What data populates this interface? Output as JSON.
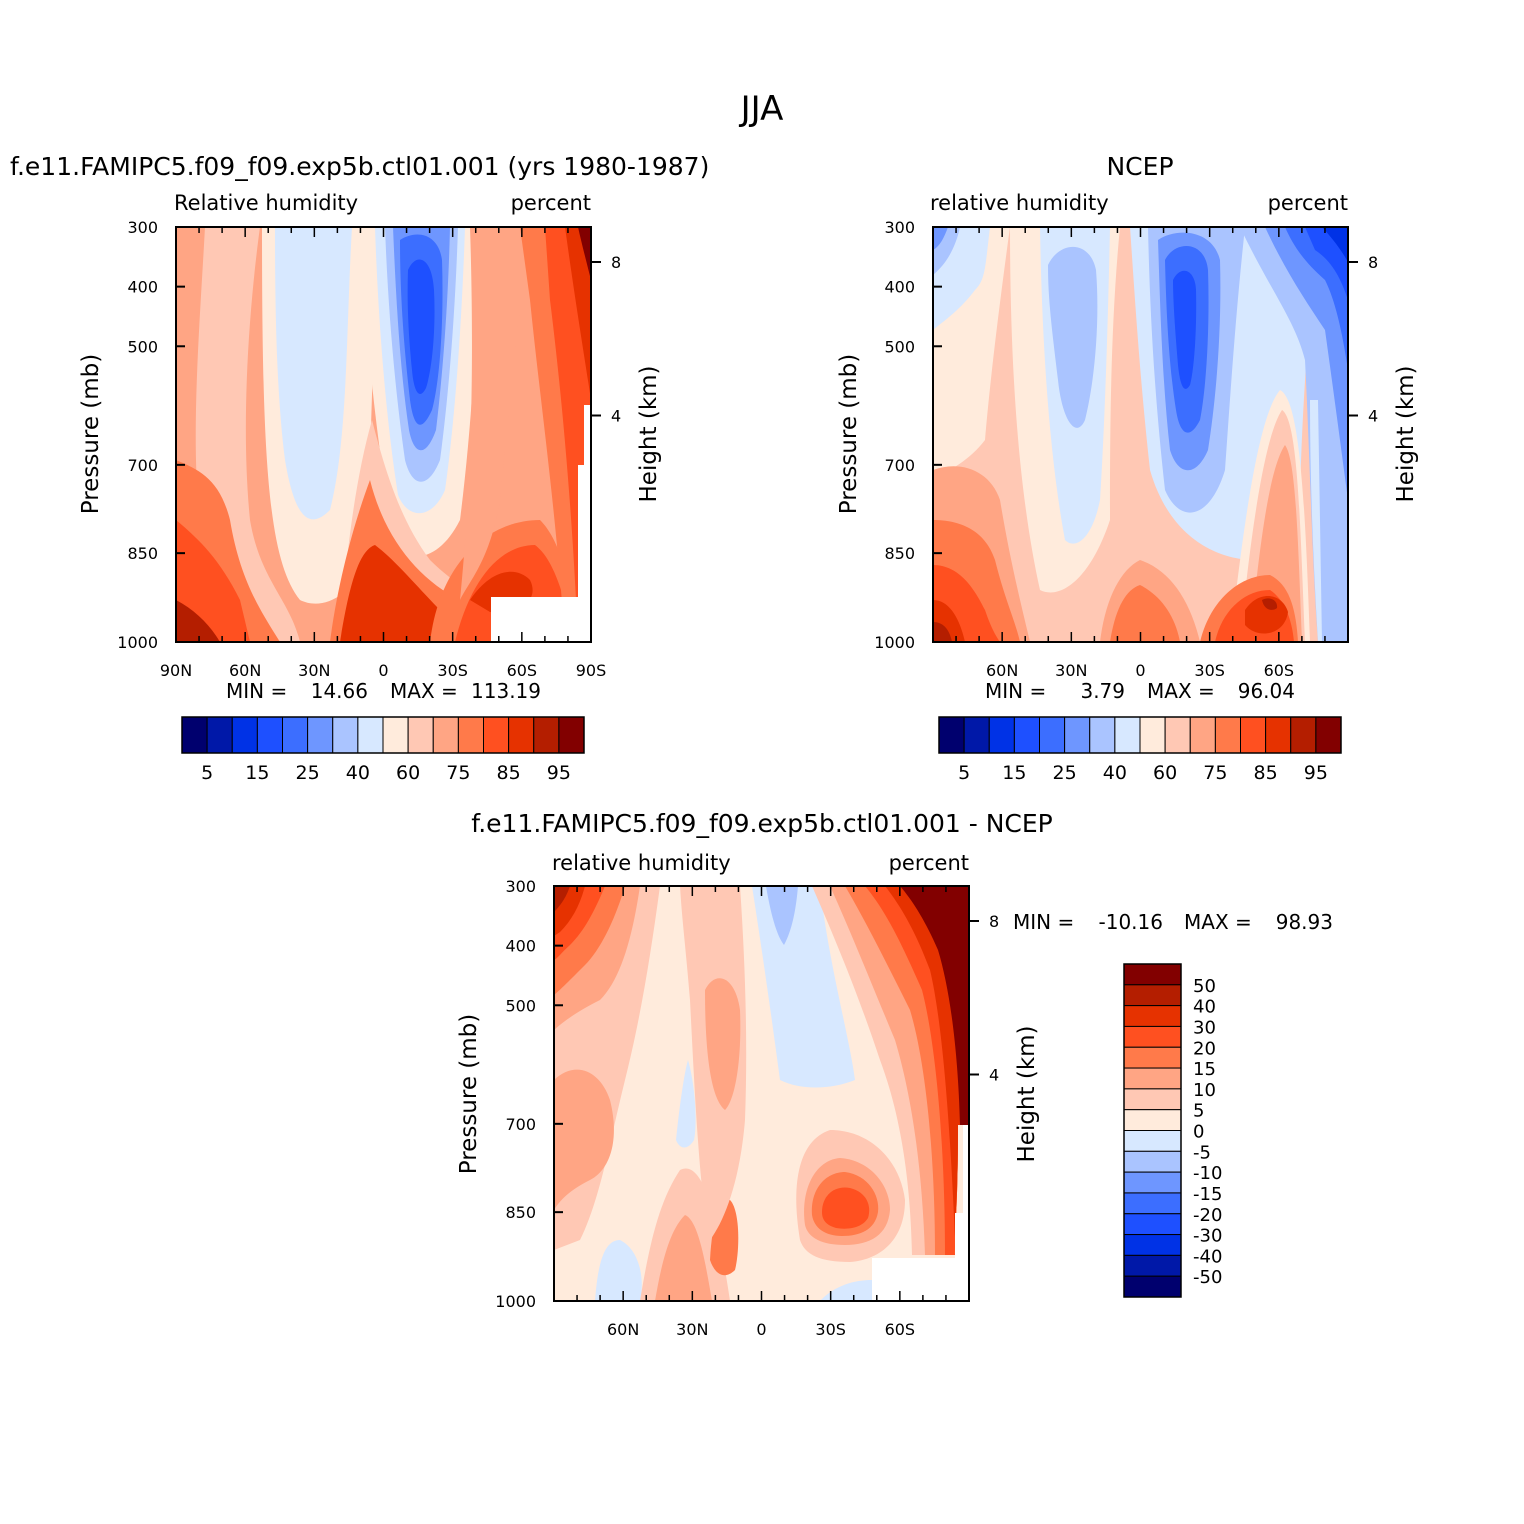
{
  "page": {
    "title": "JJA"
  },
  "colors": {
    "abs_levels": [
      "#00006e",
      "#0018a8",
      "#0032e6",
      "#1e50ff",
      "#3c6eff",
      "#6e96ff",
      "#aac4ff",
      "#d7e8ff",
      "#ffebdc",
      "#ffc8b4",
      "#ffa584",
      "#ff7a4a",
      "#ff5020",
      "#e63200",
      "#b41e00",
      "#820000"
    ],
    "diff_levels": [
      "#820000",
      "#b41e00",
      "#e63200",
      "#ff5020",
      "#ff7a4a",
      "#ffa584",
      "#ffc8b4",
      "#ffebdc",
      "#d7e8ff",
      "#aac4ff",
      "#6e96ff",
      "#3c6eff",
      "#1e50ff",
      "#0032e6",
      "#0018a8",
      "#00006e"
    ]
  },
  "chart_data": [
    {
      "type": "heatmap",
      "id": "model",
      "title": "f.e11.FAMIPC5.f09_f09.exp5b.ctl01.001 (yrs 1980-1987)",
      "left_label": "Relative humidity",
      "right_label": "percent",
      "ylabel": "Pressure (mb)",
      "y2label": "Height (km)",
      "x_ticks": [
        "90N",
        "60N",
        "30N",
        "0",
        "30S",
        "60S",
        "90S"
      ],
      "y_ticks": [
        "300",
        "400",
        "500",
        "700",
        "850",
        "1000"
      ],
      "y2_ticks": [
        "8",
        "4"
      ],
      "stats": {
        "min_label": "MIN =",
        "min": "14.66",
        "max_label": "MAX =",
        "max": "113.19"
      },
      "colorbar_labels": [
        "5",
        "15",
        "25",
        "40",
        "60",
        "75",
        "85",
        "95"
      ],
      "bands": [
        {
          "c": 12,
          "x": [
            2,
            8,
            20,
            30,
            42,
            52,
            60,
            70,
            78,
            86,
            93,
            100
          ]
        },
        {
          "c": 11,
          "x": [
            7,
            12,
            23,
            33,
            44,
            55,
            63,
            72,
            80,
            88,
            95,
            100
          ]
        },
        {
          "c": 10,
          "x": [
            10,
            14,
            25,
            36,
            46,
            58,
            66,
            74,
            82,
            90,
            96,
            100
          ]
        },
        {
          "c": 9,
          "x": [
            14,
            18,
            27,
            38,
            47,
            60,
            68,
            76,
            84,
            91,
            97,
            100
          ]
        },
        {
          "c": 8,
          "x": [
            20,
            22,
            29,
            40,
            48,
            63,
            71,
            80,
            86,
            92,
            98,
            100
          ]
        },
        {
          "c": 7,
          "x": [
            24,
            25,
            30,
            41,
            49,
            66,
            75,
            84,
            90,
            96,
            99,
            100
          ]
        }
      ]
    },
    {
      "type": "heatmap",
      "id": "ncep",
      "title": "NCEP",
      "left_label": "relative humidity",
      "right_label": "percent",
      "ylabel": "Pressure (mb)",
      "y2label": "Height (km)",
      "x_ticks": [
        "60N",
        "30N",
        "0",
        "30S",
        "60S"
      ],
      "y_ticks": [
        "300",
        "400",
        "500",
        "700",
        "850",
        "1000"
      ],
      "y2_ticks": [
        "8",
        "4"
      ],
      "stats": {
        "min_label": "MIN =",
        "min": "3.79",
        "max_label": "MAX =",
        "max": "96.04"
      },
      "colorbar_labels": [
        "5",
        "15",
        "25",
        "40",
        "60",
        "75",
        "85",
        "95"
      ]
    },
    {
      "type": "heatmap",
      "id": "difference",
      "title": "f.e11.FAMIPC5.f09_f09.exp5b.ctl01.001 - NCEP",
      "left_label": "relative humidity",
      "right_label": "percent",
      "ylabel": "Pressure (mb)",
      "y2label": "Height (km)",
      "x_ticks": [
        "60N",
        "30N",
        "0",
        "30S",
        "60S"
      ],
      "y_ticks": [
        "300",
        "400",
        "500",
        "700",
        "850",
        "1000"
      ],
      "y2_ticks": [
        "8",
        "4"
      ],
      "stats": {
        "min_label": "MIN =",
        "min": "-10.16",
        "max_label": "MAX =",
        "max": "98.93"
      },
      "colorbar_labels": [
        "50",
        "40",
        "30",
        "20",
        "15",
        "10",
        "5",
        "0",
        "-5",
        "-10",
        "-15",
        "-20",
        "-30",
        "-40",
        "-50"
      ]
    }
  ]
}
